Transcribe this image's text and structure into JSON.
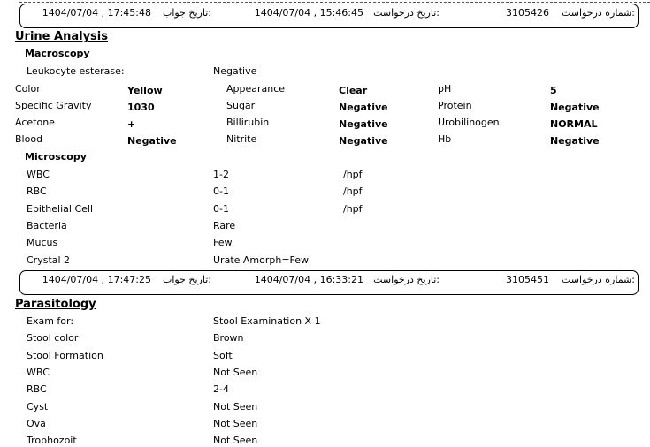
{
  "header1": {
    "request_no_label": "شماره درخواست:",
    "request_no": "3105426",
    "request_date_label": "تاریخ درخواست:",
    "request_date": "1404/07/04 , 15:46:45",
    "answer_date_label": "تاریخ جواب:",
    "answer_date": "1404/07/04 , 17:45:48"
  },
  "urine": {
    "title": "Urine Analysis",
    "macroscopy": "Macroscopy",
    "leukocyte_label": "Leukocyte esterase:",
    "leukocyte_value": "Negative",
    "grid": [
      [
        "Color",
        "Yellow",
        "Appearance",
        "Clear",
        "pH",
        "5"
      ],
      [
        "Specific Gravity",
        "1030",
        "Sugar",
        "Negative",
        "Protein",
        "Negative"
      ],
      [
        "Acetone",
        "+",
        "Billirubin",
        "Negative",
        "Urobilinogen",
        "NORMAL"
      ],
      [
        "Blood",
        "Negative",
        "Nitrite",
        "Negative",
        "Hb",
        "Negative"
      ]
    ],
    "microscopy": "Microscopy",
    "micro": [
      [
        "WBC",
        "1-2",
        "/hpf"
      ],
      [
        "RBC",
        "0-1",
        "/hpf"
      ],
      [
        "Epithelial Cell",
        "0-1",
        "/hpf"
      ],
      [
        "Bacteria",
        "Rare",
        ""
      ],
      [
        "Mucus",
        "Few",
        ""
      ],
      [
        "Crystal 2",
        "Urate Amorph=Few",
        ""
      ]
    ]
  },
  "header2": {
    "request_no_label": "شماره درخواست:",
    "request_no": "3105451",
    "request_date_label": "تاریخ درخواست:",
    "request_date": "1404/07/04 , 16:33:21",
    "answer_date_label": "تاریخ جواب:",
    "answer_date": "1404/07/04 , 17:47:25"
  },
  "parasitology": {
    "title": "Parasitology",
    "rows": [
      [
        "Exam for:",
        "Stool Examination X 1"
      ],
      [
        "Stool color",
        "Brown"
      ],
      [
        "Stool Formation",
        "Soft"
      ],
      [
        "WBC",
        "Not Seen"
      ],
      [
        "RBC",
        "2-4"
      ],
      [
        "Cyst",
        "Not Seen"
      ],
      [
        "Ova",
        "Not Seen"
      ],
      [
        "Trophozoit",
        "Not Seen"
      ]
    ]
  }
}
